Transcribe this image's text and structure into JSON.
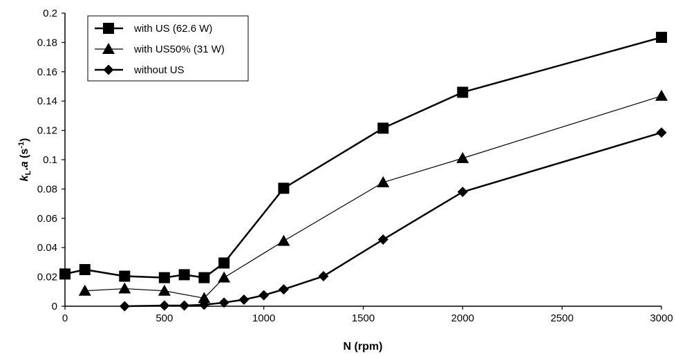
{
  "chart_data": {
    "type": "line",
    "xlabel": "N (rpm)",
    "ylabel": {
      "k": "k",
      "sub": "L",
      "mid": ".",
      "a": "a",
      "unit_open": " (s",
      "sup": "-1",
      "unit_close": ")"
    },
    "xlim": [
      0,
      3000
    ],
    "ylim": [
      0,
      0.2
    ],
    "x_ticks": [
      "0",
      "500",
      "1000",
      "1500",
      "2000",
      "2500",
      "3000"
    ],
    "y_ticks": [
      "0",
      "0.02",
      "0.04",
      "0.06",
      "0.08",
      "0.1",
      "0.12",
      "0.14",
      "0.16",
      "0.18",
      "0.2"
    ],
    "grid": false,
    "legend_position": "top-left",
    "series": [
      {
        "name": "with US (62.6 W)",
        "marker": "square",
        "color": "#000000",
        "points": [
          [
            0,
            0.022
          ],
          [
            100,
            0.025
          ],
          [
            300,
            0.0205
          ],
          [
            500,
            0.0195
          ],
          [
            600,
            0.0215
          ],
          [
            700,
            0.0195
          ],
          [
            800,
            0.0295
          ],
          [
            1100,
            0.0805
          ],
          [
            1600,
            0.1215
          ],
          [
            2000,
            0.146
          ],
          [
            3000,
            0.1835
          ]
        ]
      },
      {
        "name": "with US50% (31 W)",
        "marker": "triangle",
        "color": "#000000",
        "points": [
          [
            100,
            0.0105
          ],
          [
            300,
            0.012
          ],
          [
            500,
            0.0105
          ],
          [
            700,
            0.0055
          ],
          [
            800,
            0.0195
          ],
          [
            1100,
            0.0445
          ],
          [
            1600,
            0.0845
          ],
          [
            2000,
            0.101
          ],
          [
            3000,
            0.1435
          ]
        ]
      },
      {
        "name": "without US",
        "marker": "diamond",
        "color": "#000000",
        "points": [
          [
            300,
            0.0
          ],
          [
            500,
            0.0005
          ],
          [
            600,
            0.0005
          ],
          [
            700,
            0.001
          ],
          [
            800,
            0.0025
          ],
          [
            900,
            0.0045
          ],
          [
            1000,
            0.0075
          ],
          [
            1100,
            0.0115
          ],
          [
            1300,
            0.0205
          ],
          [
            1600,
            0.0455
          ],
          [
            2000,
            0.078
          ],
          [
            3000,
            0.1185
          ]
        ]
      }
    ]
  }
}
